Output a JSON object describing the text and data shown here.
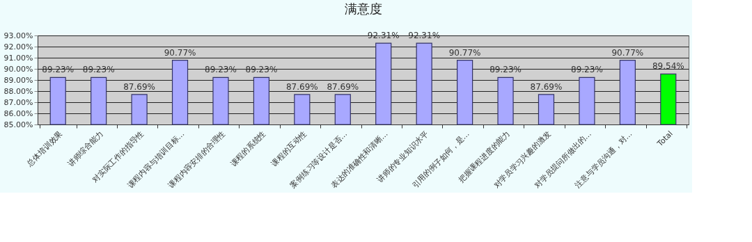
{
  "chart_data": {
    "type": "bar",
    "title": "满意度",
    "categories": [
      "总体培训效果",
      "讲师综合能力",
      "对实际工作的指导性",
      "课程内容与培训目标…",
      "课程内容安排的合理性",
      "课程的系统性",
      "课程的互动性",
      "案例练习等设计是否…",
      "表达的准确性和清晰…",
      "讲师的专业知识水平",
      "引用的例子如何，是…",
      "把握课程进度的能力",
      "对学员学习兴趣的激发",
      "对学员提问所做出的…",
      "注意与学员沟通，对…",
      "Total"
    ],
    "values": [
      89.23,
      89.23,
      87.69,
      90.77,
      89.23,
      89.23,
      87.69,
      87.69,
      92.31,
      92.31,
      90.77,
      89.23,
      87.69,
      89.23,
      90.77,
      89.54
    ],
    "colors": [
      "#a8a8ff",
      "#a8a8ff",
      "#a8a8ff",
      "#a8a8ff",
      "#a8a8ff",
      "#a8a8ff",
      "#a8a8ff",
      "#a8a8ff",
      "#a8a8ff",
      "#a8a8ff",
      "#a8a8ff",
      "#a8a8ff",
      "#a8a8ff",
      "#a8a8ff",
      "#a8a8ff",
      "#00ff00"
    ],
    "value_labels": [
      "89.23%",
      "89.23%",
      "87.69%",
      "90.77%",
      "89.23%",
      "89.23%",
      "87.69%",
      "87.69%",
      "92.31%",
      "92.31%",
      "90.77%",
      "89.23%",
      "87.69%",
      "89.23%",
      "90.77%",
      "89.54%"
    ],
    "ylim": [
      85,
      93
    ],
    "yticks": [
      {
        "value": 85,
        "label": "85.00%"
      },
      {
        "value": 86,
        "label": "86.00%"
      },
      {
        "value": 87,
        "label": "87.00%"
      },
      {
        "value": 88,
        "label": "88.00%"
      },
      {
        "value": 89,
        "label": "89.00%"
      },
      {
        "value": 90,
        "label": "90.00%"
      },
      {
        "value": 91,
        "label": "91.00%"
      },
      {
        "value": 92,
        "label": "92.00%"
      },
      {
        "value": 93,
        "label": "93.00%"
      }
    ],
    "grid": "y"
  }
}
